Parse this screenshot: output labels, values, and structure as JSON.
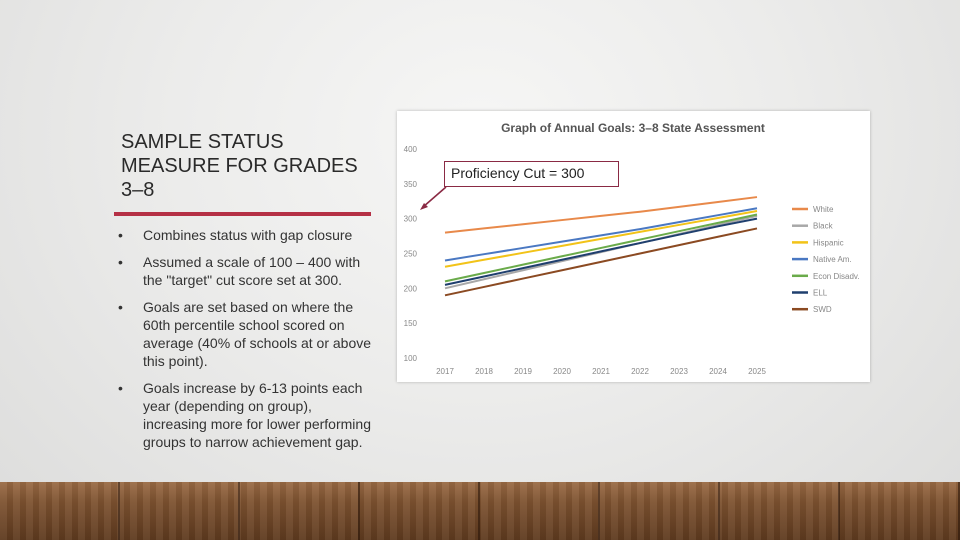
{
  "slide": {
    "title": "SAMPLE STATUS MEASURE FOR GRADES 3–8",
    "bullets": [
      "Combines status with gap closure",
      "Assumed a scale of 100 – 400 with the \"target\" cut score set at 300.",
      "Goals are set based on where the 60th percentile school scored on average (40% of schools at or above this point).",
      "Goals increase by 6-13 points each year (depending on group), increasing more for lower performing groups to narrow achievement gap."
    ],
    "bullet_glyph": "•",
    "accent_color": "#b53045"
  },
  "callout": {
    "label": "Proficiency Cut = 300",
    "border_color": "#8a2a44"
  },
  "chart_data": {
    "type": "line",
    "title": "Graph of Annual Goals: 3–8 State Assessment",
    "xlabel": "",
    "ylabel": "",
    "x": [
      "2017",
      "2018",
      "2019",
      "2020",
      "2021",
      "2022",
      "2023",
      "2024",
      "2025"
    ],
    "ylim": [
      100,
      400
    ],
    "yticks": [
      100,
      150,
      200,
      250,
      300,
      350,
      400
    ],
    "grid": false,
    "legend_position": "right",
    "series": [
      {
        "name": "White",
        "color": "#e8894a",
        "values": [
          280,
          286,
          292,
          298,
          304,
          310,
          317,
          324,
          331
        ]
      },
      {
        "name": "Black",
        "color": "#a8a8a8",
        "values": [
          200,
          213,
          226,
          239,
          252,
          265,
          278,
          291,
          304
        ]
      },
      {
        "name": "Hispanic",
        "color": "#f2c318",
        "values": [
          231,
          241,
          251,
          261,
          271,
          281,
          291,
          301,
          311
        ]
      },
      {
        "name": "Native Am.",
        "color": "#4a78c2",
        "values": [
          240,
          249,
          258,
          267,
          276,
          285,
          295,
          305,
          315
        ]
      },
      {
        "name": "Econ Disadv.",
        "color": "#6aab4a",
        "values": [
          210,
          222,
          234,
          246,
          258,
          270,
          282,
          294,
          306
        ]
      },
      {
        "name": "ELL",
        "color": "#1f3f6e",
        "values": [
          205,
          217,
          229,
          241,
          253,
          265,
          277,
          289,
          300
        ]
      },
      {
        "name": "SWD",
        "color": "#8b4a22",
        "values": [
          190,
          202,
          214,
          226,
          238,
          250,
          262,
          274,
          286
        ]
      }
    ]
  }
}
